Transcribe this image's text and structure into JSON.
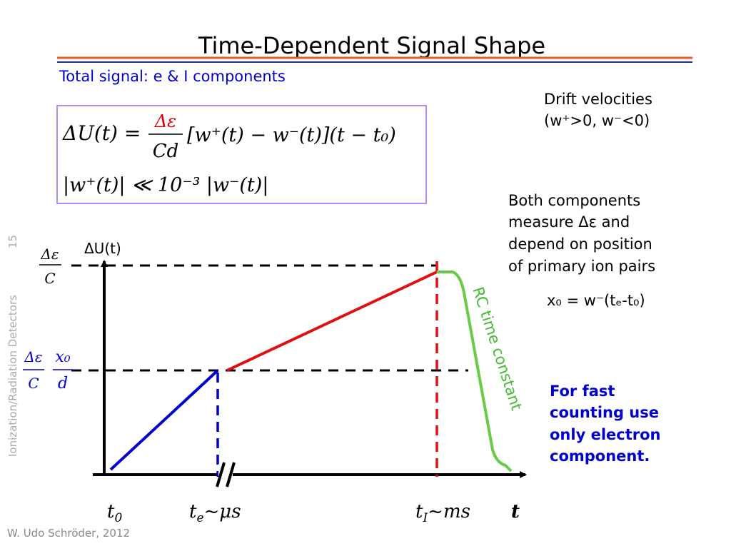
{
  "title": "Time-Dependent Signal Shape",
  "subtitle": "Total signal: e & I components",
  "formula": {
    "line1_lhs": "ΔU(t) =",
    "line1_num": "Δε",
    "line1_den": "Cd",
    "line1_rhs": "[w⁺(t) − w⁻(t)](t − t₀)",
    "line2": "|w⁺(t)| ≪ 10⁻³ |w⁻(t)|"
  },
  "notes": {
    "drift": [
      "Drift velocities",
      "(w⁺>0, w⁻<0)"
    ],
    "both": [
      "Both components",
      "measure Δε and",
      "depend on position",
      "of primary ion pairs"
    ],
    "x0": "x₀ = w⁻(tₑ-t₀)",
    "fast": [
      "For fast",
      "counting use",
      "only electron",
      "component."
    ]
  },
  "diagram": {
    "y_label": "ΔU(t)",
    "level_top": {
      "num": "Δε",
      "den": "C"
    },
    "level_mid": {
      "num": "Δε",
      "num2": "x₀",
      "den": "C",
      "den2": "d"
    },
    "rc_label": "RC time constant",
    "x_labels": [
      {
        "main": "t",
        "sub": "0",
        "tail": ""
      },
      {
        "main": "t",
        "sub": "e",
        "tail": "~μs"
      },
      {
        "main": "t",
        "sub": "I",
        "tail": "~ms"
      },
      {
        "main": "t",
        "sub": "",
        "tail": ""
      }
    ]
  },
  "side": {
    "course": "Ionization/Radiation Detectors",
    "page": "15"
  },
  "footer": "W. Udo Schröder, 2012"
}
